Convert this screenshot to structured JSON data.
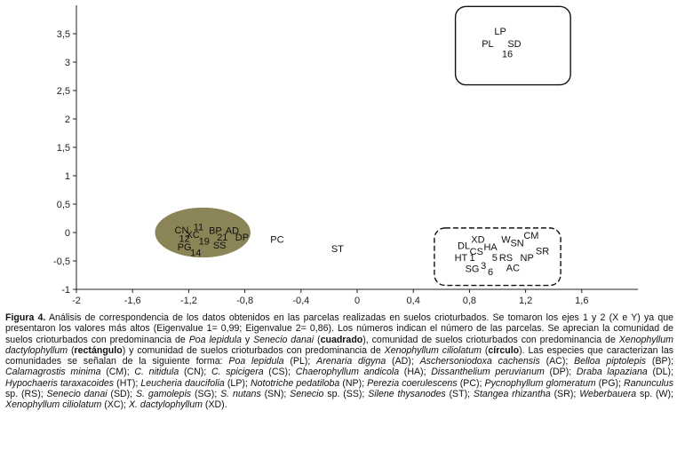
{
  "chart_data": {
    "type": "scatter",
    "xlim": [
      -2,
      2
    ],
    "ylim": [
      -1,
      4
    ],
    "x_ticks": [
      {
        "v": -2,
        "label": "-2"
      },
      {
        "v": -1.6,
        "label": "-1,6"
      },
      {
        "v": -1.2,
        "label": "-1,2"
      },
      {
        "v": -0.8,
        "label": "-0,8"
      },
      {
        "v": -0.4,
        "label": "-0,4"
      },
      {
        "v": 0,
        "label": "0"
      },
      {
        "v": 0.4,
        "label": "0,4"
      },
      {
        "v": 0.8,
        "label": "0,8"
      },
      {
        "v": 1.2,
        "label": "1,2"
      },
      {
        "v": 1.6,
        "label": "1,6"
      }
    ],
    "y_ticks": [
      {
        "v": -1,
        "label": "-1"
      },
      {
        "v": -0.5,
        "label": "-0,5"
      },
      {
        "v": 0,
        "label": "0"
      },
      {
        "v": 0.5,
        "label": "0,5"
      },
      {
        "v": 1,
        "label": "1"
      },
      {
        "v": 1.5,
        "label": "1,5"
      },
      {
        "v": 2,
        "label": "2"
      },
      {
        "v": 2.5,
        "label": "2,5"
      },
      {
        "v": 3,
        "label": "3"
      },
      {
        "v": 3.5,
        "label": "3,5"
      }
    ],
    "groups": [
      {
        "shape": "ellipse",
        "center": [
          -1.1,
          0.0
        ],
        "radius": [
          0.34,
          0.44
        ],
        "color": "#8b8456"
      },
      {
        "shape": "rounded-rect",
        "x": [
          0.55,
          1.45
        ],
        "y": [
          -0.93,
          0.08
        ],
        "style": "dashed"
      },
      {
        "shape": "rounded-rect",
        "x": [
          0.7,
          1.52
        ],
        "y": [
          2.6,
          3.98
        ],
        "style": "solid"
      }
    ],
    "points": [
      {
        "label": "LP",
        "x": 1.02,
        "y": 3.55
      },
      {
        "label": "PL",
        "x": 0.93,
        "y": 3.33
      },
      {
        "label": "SD",
        "x": 1.12,
        "y": 3.33
      },
      {
        "label": "16",
        "x": 1.07,
        "y": 3.15
      },
      {
        "label": "CN",
        "x": -1.25,
        "y": 0.05
      },
      {
        "label": "11",
        "x": -1.13,
        "y": 0.1
      },
      {
        "label": "XC",
        "x": -1.17,
        "y": -0.03
      },
      {
        "label": "BP",
        "x": -1.01,
        "y": 0.04
      },
      {
        "label": "AD",
        "x": -0.89,
        "y": 0.04
      },
      {
        "label": "12",
        "x": -1.23,
        "y": -0.1
      },
      {
        "label": "19",
        "x": -1.09,
        "y": -0.15
      },
      {
        "label": "21",
        "x": -0.96,
        "y": -0.08
      },
      {
        "label": "DP",
        "x": -0.82,
        "y": -0.08
      },
      {
        "label": "PG",
        "x": -1.23,
        "y": -0.25
      },
      {
        "label": "14",
        "x": -1.15,
        "y": -0.35
      },
      {
        "label": "SS",
        "x": -0.98,
        "y": -0.22
      },
      {
        "label": "PC",
        "x": -0.57,
        "y": -0.12
      },
      {
        "label": "ST",
        "x": -0.14,
        "y": -0.28
      },
      {
        "label": "XD",
        "x": 0.86,
        "y": -0.12
      },
      {
        "label": "W",
        "x": 1.06,
        "y": -0.12
      },
      {
        "label": "CM",
        "x": 1.24,
        "y": -0.05
      },
      {
        "label": "DL",
        "x": 0.76,
        "y": -0.23
      },
      {
        "label": "HA",
        "x": 0.95,
        "y": -0.25
      },
      {
        "label": "SN",
        "x": 1.14,
        "y": -0.18
      },
      {
        "label": "CS",
        "x": 0.85,
        "y": -0.33
      },
      {
        "label": "SR",
        "x": 1.32,
        "y": -0.32
      },
      {
        "label": "HT",
        "x": 0.74,
        "y": -0.44
      },
      {
        "label": "1",
        "x": 0.82,
        "y": -0.44
      },
      {
        "label": "5",
        "x": 0.98,
        "y": -0.44
      },
      {
        "label": "RS",
        "x": 1.06,
        "y": -0.44
      },
      {
        "label": "NP",
        "x": 1.21,
        "y": -0.44
      },
      {
        "label": "SG",
        "x": 0.82,
        "y": -0.63
      },
      {
        "label": "3",
        "x": 0.9,
        "y": -0.58
      },
      {
        "label": "6",
        "x": 0.95,
        "y": -0.69
      },
      {
        "label": "AC",
        "x": 1.11,
        "y": -0.62
      }
    ]
  },
  "caption": {
    "figure_number": "Figura 4.",
    "segments": [
      {
        "t": " Análisis de correspondencia de los datos obtenidos en las parcelas realizadas en suelos crioturbados. Se tomaron los ejes 1 y 2 (X e Y) ya que presentaron los valores más altos (Eigenvalue 1= 0,99; Eigenvalue 2= 0,86). Los números indican el número de las parcelas. Se aprecian la comunidad de suelos crioturbados con predominancia de ",
        "s": "n"
      },
      {
        "t": "Poa lepidula",
        "s": "i"
      },
      {
        "t": " y ",
        "s": "n"
      },
      {
        "t": "Senecio danai",
        "s": "i"
      },
      {
        "t": " (",
        "s": "n"
      },
      {
        "t": "cuadrado",
        "s": "b"
      },
      {
        "t": "), comunidad de suelos crioturbados con predominancia de ",
        "s": "n"
      },
      {
        "t": "Xenophyllum dactylophyllum",
        "s": "i"
      },
      {
        "t": " (",
        "s": "n"
      },
      {
        "t": "rectángulo",
        "s": "b"
      },
      {
        "t": ") y comunidad de suelos crioturbados con predominancia de ",
        "s": "n"
      },
      {
        "t": "Xenophyllum ciliolatum",
        "s": "i"
      },
      {
        "t": " (",
        "s": "n"
      },
      {
        "t": "círculo",
        "s": "b"
      },
      {
        "t": "). Las especies que caracterizan las comunidades se señalan de la siguiente forma: ",
        "s": "n"
      },
      {
        "t": "Poa lepidula",
        "s": "i"
      },
      {
        "t": " (PL); ",
        "s": "n"
      },
      {
        "t": "Arenaria digyna",
        "s": "i"
      },
      {
        "t": " (AD); ",
        "s": "n"
      },
      {
        "t": "Aschersoniodoxa cachensis",
        "s": "i"
      },
      {
        "t": " (AC); ",
        "s": "n"
      },
      {
        "t": "Belloa piptolepis",
        "s": "i"
      },
      {
        "t": " (BP); ",
        "s": "n"
      },
      {
        "t": "Calamagrostis minima",
        "s": "i"
      },
      {
        "t": " (CM); ",
        "s": "n"
      },
      {
        "t": "C. nitidula",
        "s": "i"
      },
      {
        "t": " (CN); ",
        "s": "n"
      },
      {
        "t": "C. spicigera",
        "s": "i"
      },
      {
        "t": " (CS); ",
        "s": "n"
      },
      {
        "t": "Chaerophyllum andicola",
        "s": "i"
      },
      {
        "t": " (HA); ",
        "s": "n"
      },
      {
        "t": "Dissanthelium peruvianum",
        "s": "i"
      },
      {
        "t": " (DP); ",
        "s": "n"
      },
      {
        "t": "Draba lapaziana",
        "s": "i"
      },
      {
        "t": " (DL); ",
        "s": "n"
      },
      {
        "t": "Hypochaeris taraxacoides",
        "s": "i"
      },
      {
        "t": " (HT); ",
        "s": "n"
      },
      {
        "t": "Leucheria daucifolia",
        "s": "i"
      },
      {
        "t": " (LP); ",
        "s": "n"
      },
      {
        "t": "Nototriche pedatiloba",
        "s": "i"
      },
      {
        "t": " (NP); ",
        "s": "n"
      },
      {
        "t": "Perezia coerulescens",
        "s": "i"
      },
      {
        "t": " (PC); ",
        "s": "n"
      },
      {
        "t": "Pycnophyllum glomeratum",
        "s": "i"
      },
      {
        "t": " (PG); ",
        "s": "n"
      },
      {
        "t": "Ranunculus",
        "s": "i"
      },
      {
        "t": " sp. (RS); ",
        "s": "n"
      },
      {
        "t": "Senecio danai",
        "s": "i"
      },
      {
        "t": " (SD); ",
        "s": "n"
      },
      {
        "t": "S. gamolepis",
        "s": "i"
      },
      {
        "t": " (SG); ",
        "s": "n"
      },
      {
        "t": "S. nutans",
        "s": "i"
      },
      {
        "t": " (SN); ",
        "s": "n"
      },
      {
        "t": "Senecio",
        "s": "i"
      },
      {
        "t": " sp. (SS); ",
        "s": "n"
      },
      {
        "t": "Silene thysanodes",
        "s": "i"
      },
      {
        "t": " (ST); ",
        "s": "n"
      },
      {
        "t": "Stangea rhizantha",
        "s": "i"
      },
      {
        "t": " (SR); ",
        "s": "n"
      },
      {
        "t": "Weberbauera",
        "s": "i"
      },
      {
        "t": " sp. (W); ",
        "s": "n"
      },
      {
        "t": "Xenophyllum ciliolatum",
        "s": "i"
      },
      {
        "t": " (XC); ",
        "s": "n"
      },
      {
        "t": "X. dactylophyllum",
        "s": "i"
      },
      {
        "t": " (XD).",
        "s": "n"
      }
    ]
  }
}
